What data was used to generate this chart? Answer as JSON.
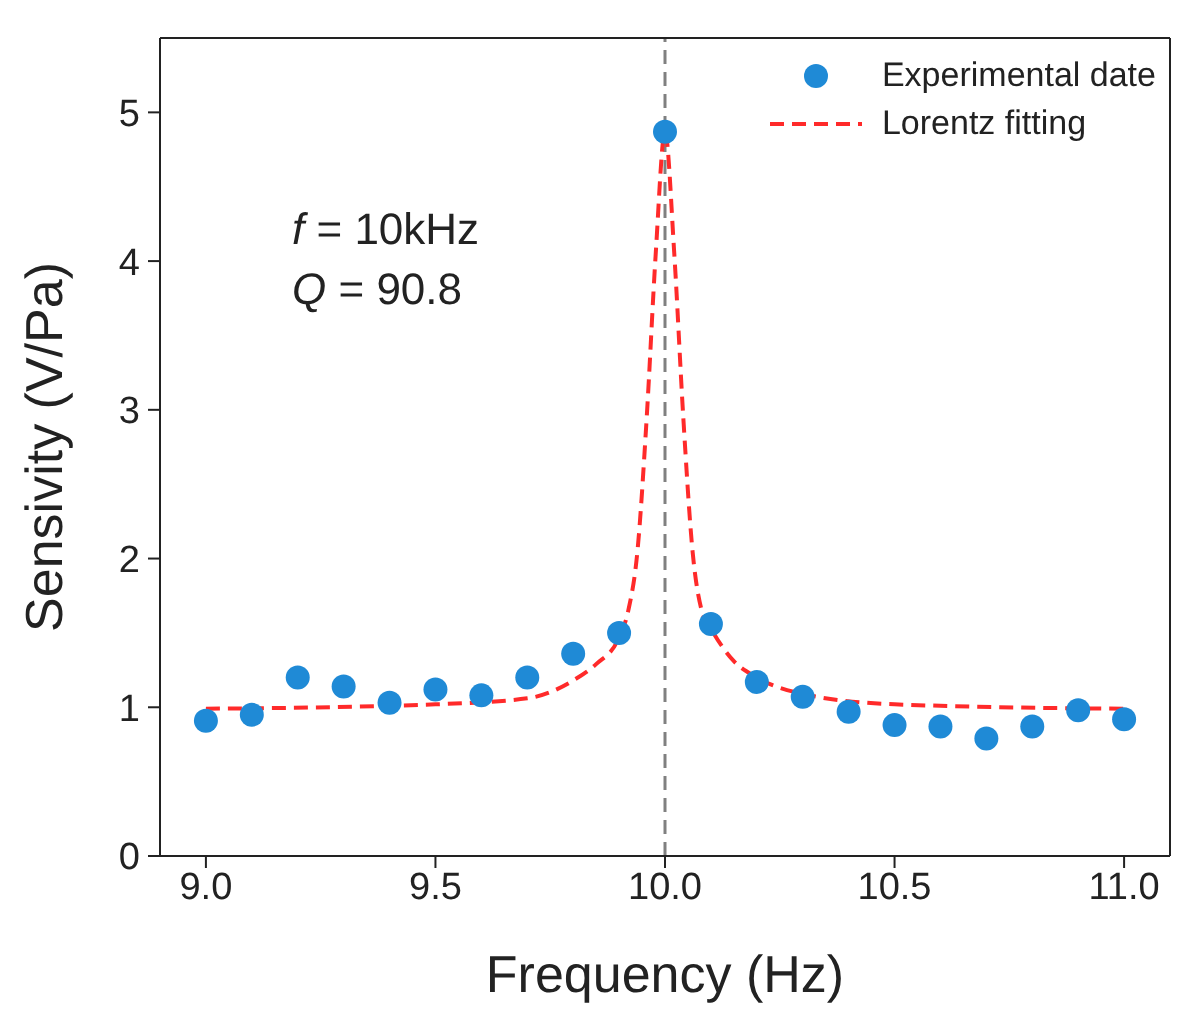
{
  "chart_data": {
    "type": "scatter",
    "xlabel": "Frequency (Hz)",
    "ylabel": "Sensivity (V/Pa)",
    "xlim": [
      8.9,
      11.1
    ],
    "xticks": [
      {
        "value": 9,
        "label": "9.0"
      },
      9.5,
      {
        "value": 10,
        "label": "10.0"
      },
      10.5,
      {
        "value": 11,
        "label": "11.0"
      }
    ],
    "ylim": [
      0,
      5.5
    ],
    "yticks": [
      0,
      1,
      2,
      3,
      4,
      5
    ],
    "series": [
      {
        "name": "Experimental date",
        "color": "#1f8ad6",
        "marker": "circle",
        "x": [
          9.0,
          9.1,
          9.2,
          9.3,
          9.4,
          9.5,
          9.6,
          9.7,
          9.8,
          9.9,
          10.0,
          10.1,
          10.2,
          10.3,
          10.4,
          10.5,
          10.6,
          10.7,
          10.8,
          10.9,
          11.0
        ],
        "values": [
          0.91,
          0.95,
          1.2,
          1.14,
          1.03,
          1.12,
          1.08,
          1.2,
          1.36,
          1.5,
          4.87,
          1.56,
          1.17,
          1.07,
          0.97,
          0.88,
          0.87,
          0.79,
          0.87,
          0.98,
          0.92
        ]
      },
      {
        "name": "Lorentz fitting",
        "type": "line",
        "color": "#ff2a2a",
        "line_style": "dashed",
        "x": [
          9.0,
          9.5,
          9.7,
          9.8,
          9.85,
          9.9,
          9.92,
          9.94,
          9.96,
          9.98,
          10.0,
          10.02,
          10.04,
          10.06,
          10.08,
          10.1,
          10.15,
          10.2,
          10.3,
          10.5,
          11.0
        ],
        "values": [
          0.99,
          1.02,
          1.06,
          1.18,
          1.29,
          1.47,
          1.65,
          2.05,
          2.94,
          4.06,
          4.87,
          4.06,
          2.94,
          2.05,
          1.65,
          1.53,
          1.31,
          1.2,
          1.09,
          1.02,
          0.99
        ]
      }
    ],
    "ref_lines": [
      {
        "axis": "x",
        "value": 10,
        "color": "#808080",
        "line_style": "dashed"
      }
    ],
    "annotations": [
      "f = 10kHz",
      "Q = 90.8"
    ],
    "legend": "top right"
  }
}
